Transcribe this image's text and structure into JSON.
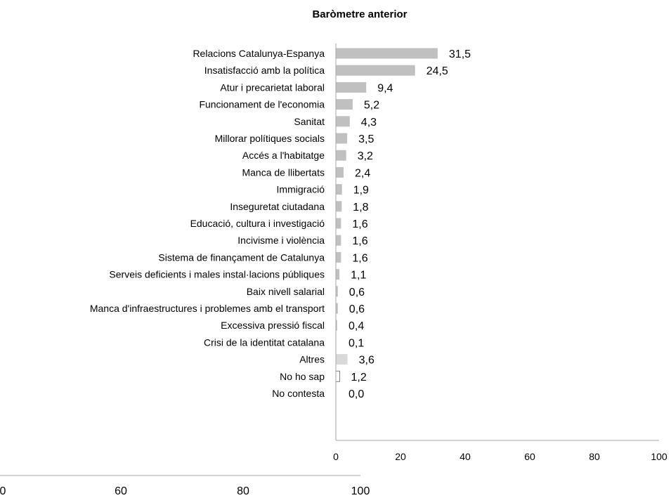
{
  "chart_data": {
    "type": "bar",
    "orientation": "horizontal",
    "title": "Baròmetre anterior",
    "categories": [
      "Relacions Catalunya-Espanya",
      "Insatisfacció amb la política",
      "Atur i precarietat laboral",
      "Funcionament de l'economia",
      "Sanitat",
      "Millorar polítiques socials",
      "Accés a l'habitatge",
      "Manca de llibertats",
      "Immigració",
      "Inseguretat ciutadana",
      "Educació, cultura i investigació",
      "Incivisme i violència",
      "Sistema de finançament de Catalunya",
      "Serveis deficients i males instal·lacions públiques",
      "Baix nivell salarial",
      "Manca d'infraestructures i problemes amb el transport",
      "Excessiva pressió fiscal",
      "Crisi de la identitat catalana",
      "Altres",
      "No ho sap",
      "No contesta"
    ],
    "values": [
      31.5,
      24.5,
      9.4,
      5.2,
      4.3,
      3.5,
      3.2,
      2.4,
      1.9,
      1.8,
      1.6,
      1.6,
      1.6,
      1.1,
      0.6,
      0.6,
      0.4,
      0.1,
      3.6,
      1.2,
      0.0
    ],
    "value_labels": [
      "31,5",
      "24,5",
      "9,4",
      "5,2",
      "4,3",
      "3,5",
      "3,2",
      "2,4",
      "1,9",
      "1,8",
      "1,6",
      "1,6",
      "1,6",
      "1,1",
      "0,6",
      "0,6",
      "0,4",
      "0,1",
      "3,6",
      "1,2",
      "0,0"
    ],
    "bar_styles": [
      "main",
      "main",
      "main",
      "main",
      "main",
      "main",
      "main",
      "main",
      "main",
      "main",
      "main",
      "main",
      "main",
      "main",
      "main",
      "main",
      "main",
      "main",
      "other",
      "outline",
      "outline"
    ],
    "xlim": [
      0,
      100
    ],
    "xticks": [
      0,
      20,
      40,
      60,
      80,
      100
    ],
    "grid": false,
    "colors": {
      "main": "#c0c0c0",
      "other": "#d9d9d9",
      "outline_stroke": "#7f7f7f",
      "axis": "#a6a6a6"
    },
    "background_axis": {
      "tick_labels": [
        "0",
        "60",
        "80",
        "100"
      ]
    }
  }
}
